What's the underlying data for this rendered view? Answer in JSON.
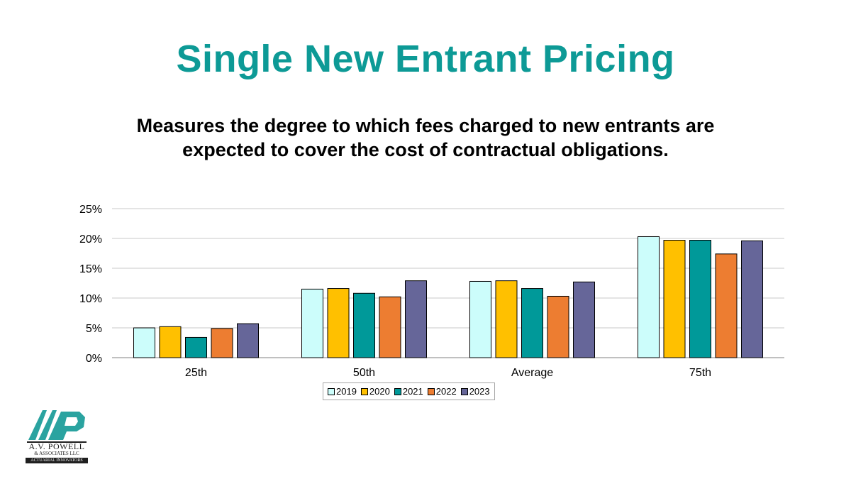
{
  "slide": {
    "title": "Single New Entrant Pricing",
    "subtitle_line1": "Measures the degree to which fees charged to new entrants are",
    "subtitle_line2": "expected to cover the cost of contractual obligations."
  },
  "logo": {
    "line1": "A.V. POWELL",
    "line2": "& ASSOCIATES LLC",
    "line3": "ACTUARIAL INNOVATORS",
    "registered": "®",
    "brand_color": "#2aa3a0"
  },
  "chart_data": {
    "type": "bar",
    "title": "",
    "xlabel": "",
    "ylabel": "",
    "categories": [
      "25th",
      "50th",
      "Average",
      "75th"
    ],
    "ylim": [
      0,
      25
    ],
    "yticks": [
      0,
      5,
      10,
      15,
      20,
      25
    ],
    "ytick_labels": [
      "0%",
      "5%",
      "10%",
      "15%",
      "20%",
      "25%"
    ],
    "grid": true,
    "legend_position": "bottom",
    "series": [
      {
        "name": "2019",
        "color": "#ccfdfb",
        "values": [
          5.0,
          11.5,
          12.8,
          20.3
        ]
      },
      {
        "name": "2020",
        "color": "#ffc000",
        "values": [
          5.2,
          11.6,
          12.9,
          19.7
        ]
      },
      {
        "name": "2021",
        "color": "#009999",
        "values": [
          3.4,
          10.8,
          11.6,
          19.7
        ]
      },
      {
        "name": "2022",
        "color": "#ed7d31",
        "values": [
          4.9,
          10.2,
          10.3,
          17.4
        ]
      },
      {
        "name": "2023",
        "color": "#666699",
        "values": [
          5.7,
          12.9,
          12.7,
          19.6
        ]
      }
    ]
  }
}
